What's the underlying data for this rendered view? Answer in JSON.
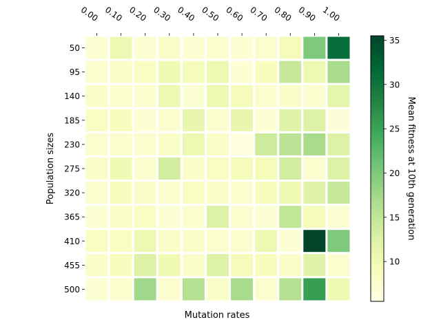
{
  "chart_data": {
    "type": "heatmap",
    "title": "",
    "xlabel": "Mutation rates",
    "ylabel": "Population sizes",
    "colorbar_label": "Mean fitness at 10th generation",
    "colormap": "YlGn",
    "x": [
      "0.00",
      "0.10",
      "0.20",
      "0.30",
      "0.40",
      "0.50",
      "0.60",
      "0.70",
      "0.80",
      "0.90",
      "1.00"
    ],
    "y": [
      "50",
      "95",
      "140",
      "185",
      "230",
      "275",
      "320",
      "365",
      "410",
      "455",
      "500"
    ],
    "values": [
      [
        7.0,
        10.5,
        7.0,
        8.0,
        7.0,
        7.5,
        7.0,
        7.5,
        9.5,
        20.0,
        31.0
      ],
      [
        7.5,
        8.0,
        8.5,
        10.0,
        9.5,
        10.5,
        7.0,
        9.0,
        14.5,
        10.5,
        17.0
      ],
      [
        8.0,
        7.5,
        7.5,
        10.5,
        7.0,
        10.5,
        9.5,
        7.5,
        8.0,
        7.5,
        11.5
      ],
      [
        8.5,
        9.0,
        7.0,
        7.5,
        11.0,
        7.5,
        11.0,
        7.0,
        12.0,
        12.5,
        6.5
      ],
      [
        7.5,
        7.5,
        7.5,
        8.0,
        10.5,
        8.0,
        6.0,
        14.0,
        15.5,
        17.0,
        12.5
      ],
      [
        8.0,
        10.0,
        7.5,
        13.5,
        8.0,
        8.5,
        9.5,
        9.5,
        13.5,
        7.5,
        12.5
      ],
      [
        7.5,
        9.0,
        8.0,
        7.5,
        8.5,
        8.0,
        7.5,
        9.0,
        10.0,
        12.0,
        14.5
      ],
      [
        7.0,
        8.0,
        8.5,
        7.0,
        7.5,
        12.5,
        7.5,
        7.0,
        15.0,
        9.5,
        7.0
      ],
      [
        8.5,
        8.5,
        10.5,
        8.0,
        8.0,
        7.5,
        7.5,
        10.5,
        7.0,
        35.5,
        20.0
      ],
      [
        8.0,
        9.0,
        12.5,
        10.0,
        8.0,
        12.5,
        9.5,
        9.0,
        8.0,
        12.0,
        7.5
      ],
      [
        7.0,
        7.5,
        17.5,
        7.5,
        16.0,
        8.0,
        17.0,
        7.5,
        16.0,
        25.5,
        10.0
      ]
    ],
    "vmin": 5.5,
    "vmax": 35.5,
    "colorbar_ticks": [
      10,
      15,
      20,
      25,
      30,
      35
    ],
    "grid": false
  }
}
